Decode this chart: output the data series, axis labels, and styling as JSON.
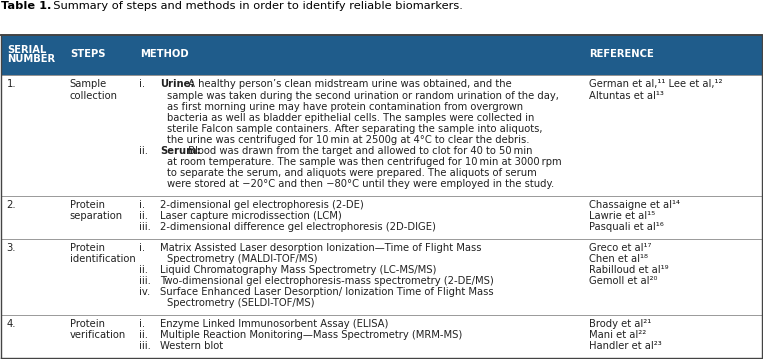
{
  "title_bold": "Table 1.",
  "title_normal": "  Summary of steps and methods in order to identify reliable biomarkers.",
  "header_bg": "#1f5c8b",
  "header_text_color": "#ffffff",
  "header_cols": [
    "SERIAL\nNUMBER",
    "STEPS",
    "METHOD",
    "REFERENCE"
  ],
  "text_color": "#222222",
  "font_size": 7.2,
  "border_color": "#999999",
  "rows": [
    {
      "serial": "1.",
      "step": "Sample\ncollection",
      "method_lines": [
        {
          "indent": false,
          "label": "i.",
          "bold": "Urine:",
          "text": " A healthy person’s clean midstream urine was obtained, and the"
        },
        {
          "indent": true,
          "label": "",
          "bold": "",
          "text": "sample was taken during the second urination or random urination of the day,"
        },
        {
          "indent": true,
          "label": "",
          "bold": "",
          "text": "as first morning urine may have protein contamination from overgrown"
        },
        {
          "indent": true,
          "label": "",
          "bold": "",
          "text": "bacteria as well as bladder epithelial cells. The samples were collected in"
        },
        {
          "indent": true,
          "label": "",
          "bold": "",
          "text": "sterile Falcon sample containers. After separating the sample into aliquots,"
        },
        {
          "indent": true,
          "label": "",
          "bold": "",
          "text": "the urine was centrifuged for 10 min at 2500g at 4°C to clear the debris."
        },
        {
          "indent": false,
          "label": "ii.",
          "bold": "Serum:",
          "text": " Blood was drawn from the target and allowed to clot for 40 to 50 min"
        },
        {
          "indent": true,
          "label": "",
          "bold": "",
          "text": "at room temperature. The sample was then centrifuged for 10 min at 3000 rpm"
        },
        {
          "indent": true,
          "label": "",
          "bold": "",
          "text": "to separate the serum, and aliquots were prepared. The aliquots of serum"
        },
        {
          "indent": true,
          "label": "",
          "bold": "",
          "text": "were stored at −20°C and then −80°C until they were employed in the study."
        }
      ],
      "reference": "German et al,¹¹ Lee et al,¹²\nAltuntas et al¹³"
    },
    {
      "serial": "2.",
      "step": "Protein\nseparation",
      "method_lines": [
        {
          "indent": false,
          "label": "i.",
          "bold": "",
          "text": "2-dimensional gel electrophoresis (2-DE)"
        },
        {
          "indent": false,
          "label": "ii.",
          "bold": "",
          "text": "Laser capture microdissection (LCM)"
        },
        {
          "indent": false,
          "label": "iii.",
          "bold": "",
          "text": "2-dimensional difference gel electrophoresis (2D-DIGE)"
        }
      ],
      "reference": "Chassaigne et al¹⁴\nLawrie et al¹⁵\nPasquali et al¹⁶"
    },
    {
      "serial": "3.",
      "step": "Protein\nidentification",
      "method_lines": [
        {
          "indent": false,
          "label": "i.",
          "bold": "",
          "text": "Matrix Assisted Laser desorption Ionization—Time of Flight Mass"
        },
        {
          "indent": true,
          "label": "",
          "bold": "",
          "text": "Spectrometry (MALDI-TOF/MS)"
        },
        {
          "indent": false,
          "label": "ii.",
          "bold": "",
          "text": "Liquid Chromatography Mass Spectrometry (LC-MS/MS)"
        },
        {
          "indent": false,
          "label": "iii.",
          "bold": "",
          "text": "Two-dimensional gel electrophoresis-mass spectrometry (2-DE/MS)"
        },
        {
          "indent": false,
          "label": "iv.",
          "bold": "",
          "text": "Surface Enhanced Laser Desorption/ Ionization Time of Flight Mass"
        },
        {
          "indent": true,
          "label": "",
          "bold": "",
          "text": "Spectrometry (SELDI-TOF/MS)"
        }
      ],
      "reference": "Greco et al¹⁷\nChen et al¹⁸\nRabilloud et al¹⁹\nGemoll et al²⁰"
    },
    {
      "serial": "4.",
      "step": "Protein\nverification",
      "method_lines": [
        {
          "indent": false,
          "label": "i.",
          "bold": "",
          "text": "Enzyme Linked Immunosorbent Assay (ELISA)"
        },
        {
          "indent": false,
          "label": "ii.",
          "bold": "",
          "text": "Multiple Reaction Monitoring—Mass Spectrometry (MRM-MS)"
        },
        {
          "indent": false,
          "label": "iii.",
          "bold": "",
          "text": "Western blot"
        }
      ],
      "reference": "Brody et al²¹\nMani et al²²\nHandler et al²³"
    }
  ]
}
